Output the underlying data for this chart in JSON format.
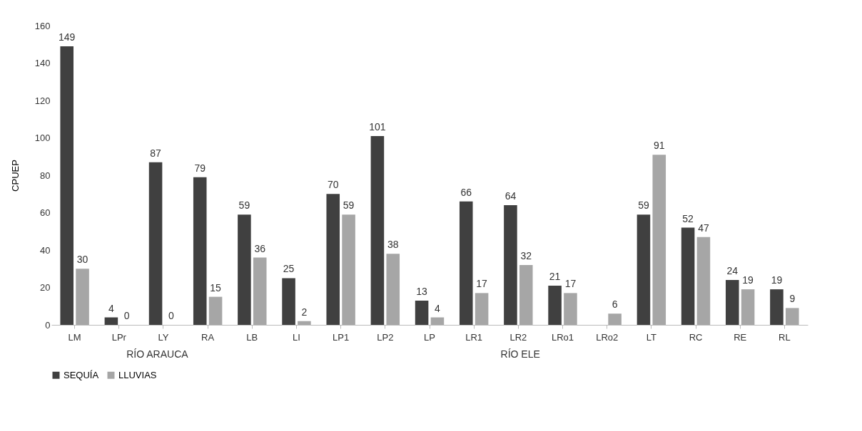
{
  "chart_data": {
    "type": "bar",
    "ylabel": "CPUEP",
    "categories": [
      "LM",
      "LPr",
      "LY",
      "RA",
      "LB",
      "LI",
      "LP1",
      "LP2",
      "LP",
      "LR1",
      "LR2",
      "LRo1",
      "LRo2",
      "LT",
      "RC",
      "RE",
      "RL"
    ],
    "series": [
      {
        "name": "SEQUÍA",
        "color": "#404040",
        "values": [
          149,
          4,
          87,
          79,
          59,
          25,
          70,
          101,
          13,
          66,
          64,
          21,
          null,
          59,
          52,
          24,
          19
        ]
      },
      {
        "name": "LLUVIAS",
        "color": "#a6a6a6",
        "values": [
          30,
          0,
          0,
          15,
          36,
          2,
          59,
          38,
          4,
          17,
          32,
          17,
          6,
          91,
          47,
          19,
          9
        ]
      }
    ],
    "ylim": [
      0,
      160
    ],
    "yticks": [
      0,
      20,
      40,
      60,
      80,
      100,
      120,
      140,
      160
    ],
    "grid": false,
    "legend": "bottom",
    "data_labels": true,
    "annotations": [
      "RÍO ARAUCA",
      "RÍO ELE"
    ]
  }
}
